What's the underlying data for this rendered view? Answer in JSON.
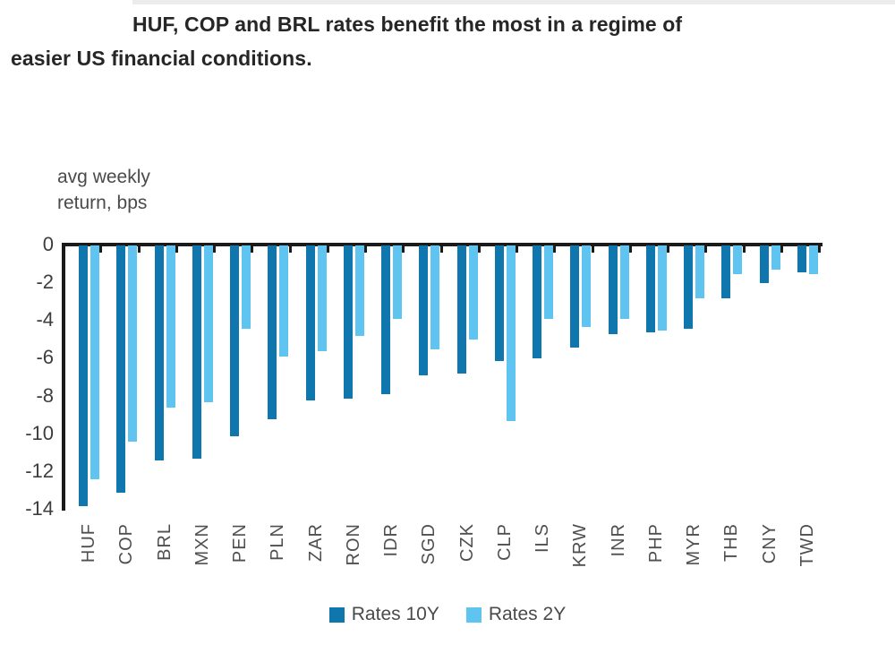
{
  "title_lines": [
    "HUF, COP and BRL rates benefit the most in a regime of",
    "easier US financial conditions."
  ],
  "y_axis_unit_lines": [
    "avg weekly",
    "return, bps"
  ],
  "colors": {
    "rates_10y": "#0f76ae",
    "rates_2y": "#5fc5f0",
    "axis": "#1a1a1a",
    "text_gray": "#4a4a4a"
  },
  "chart_data": {
    "type": "bar",
    "title": "HUF, COP and BRL rates benefit the most in a regime of easier US financial conditions.",
    "ylabel": "avg weekly return, bps",
    "xlabel": "",
    "grid": false,
    "legend_position": "bottom",
    "ylim": [
      -14,
      0
    ],
    "yticks": [
      0,
      -2,
      -4,
      -6,
      -8,
      -10,
      -12,
      -14
    ],
    "categories": [
      "HUF",
      "COP",
      "BRL",
      "MXN",
      "PEN",
      "PLN",
      "ZAR",
      "RON",
      "IDR",
      "SGD",
      "CZK",
      "CLP",
      "ILS",
      "KRW",
      "INR",
      "PHP",
      "MYR",
      "THB",
      "CNY",
      "TWD"
    ],
    "series": [
      {
        "name": "Rates 10Y",
        "color": "#0f76ae",
        "values": [
          -13.8,
          -13.1,
          -11.4,
          -11.3,
          -10.1,
          -9.2,
          -8.2,
          -8.1,
          -7.9,
          -6.9,
          -6.8,
          -6.1,
          -6.0,
          -5.4,
          -4.7,
          -4.6,
          -4.4,
          -2.8,
          -2.0,
          -1.4
        ]
      },
      {
        "name": "Rates 2Y",
        "color": "#5fc5f0",
        "values": [
          -12.4,
          -10.4,
          -8.6,
          -8.3,
          -4.4,
          -5.9,
          -5.6,
          -4.8,
          -3.9,
          -5.5,
          -5.0,
          -9.3,
          -3.9,
          -4.3,
          -3.9,
          -4.5,
          -2.8,
          -1.5,
          -1.3,
          -1.5
        ]
      }
    ]
  }
}
